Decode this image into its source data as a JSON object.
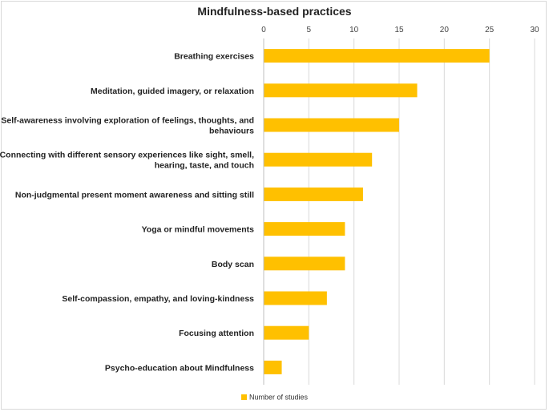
{
  "chart_data": {
    "type": "bar",
    "orientation": "horizontal",
    "title": "Mindfulness-based practices",
    "xlabel": "",
    "ylabel": "",
    "xlim": [
      0,
      30
    ],
    "x_ticks": [
      0,
      5,
      10,
      15,
      20,
      25,
      30
    ],
    "x_axis_position": "top",
    "grid": true,
    "legend_position": "bottom",
    "categories": [
      [
        "Breathing exercises"
      ],
      [
        "Meditation, guided imagery, or relaxation"
      ],
      [
        "Self-awareness involving exploration of feelings, thoughts, and",
        "behaviours"
      ],
      [
        "Connecting with different sensory experiences like sight, smell,",
        "hearing, taste, and touch"
      ],
      [
        "Non-judgmental present moment awareness and sitting still"
      ],
      [
        "Yoga or mindful movements"
      ],
      [
        "Body scan"
      ],
      [
        "Self-compassion, empathy, and loving-kindness"
      ],
      [
        "Focusing attention"
      ],
      [
        "Psycho-education about Mindfulness"
      ]
    ],
    "series": [
      {
        "name": "Number of studies",
        "color": "#ffc000",
        "values": [
          25,
          17,
          15,
          12,
          11,
          9,
          9,
          7,
          5,
          2
        ]
      }
    ]
  }
}
